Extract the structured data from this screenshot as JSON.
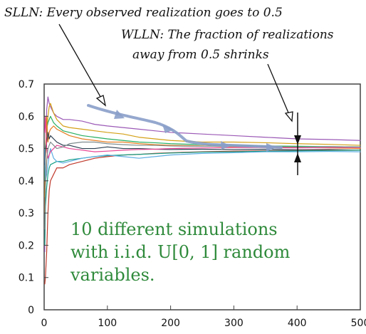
{
  "chart_data": {
    "type": "line",
    "xlabel": "",
    "ylabel": "",
    "xlim": [
      0,
      500
    ],
    "ylim": [
      0,
      0.7
    ],
    "xticks": [
      0,
      100,
      200,
      300,
      400,
      500
    ],
    "yticks": [
      0,
      0.1,
      0.2,
      0.3,
      0.4,
      0.5,
      0.6,
      0.7
    ],
    "grid": false,
    "legend": "none",
    "x": [
      1,
      2,
      4,
      6,
      8,
      10,
      15,
      20,
      30,
      40,
      60,
      80,
      100,
      125,
      150,
      175,
      200,
      250,
      300,
      350,
      400,
      450,
      500
    ],
    "series": [
      {
        "color": "#9b59b6",
        "values": [
          0.18,
          0.45,
          0.62,
          0.66,
          0.64,
          0.63,
          0.61,
          0.6,
          0.59,
          0.59,
          0.585,
          0.575,
          0.57,
          0.565,
          0.56,
          0.555,
          0.55,
          0.545,
          0.54,
          0.535,
          0.53,
          0.528,
          0.525
        ]
      },
      {
        "color": "#d4a017",
        "values": [
          0.35,
          0.48,
          0.55,
          0.6,
          0.63,
          0.64,
          0.61,
          0.59,
          0.57,
          0.565,
          0.56,
          0.555,
          0.55,
          0.545,
          0.535,
          0.53,
          0.525,
          0.52,
          0.52,
          0.518,
          0.515,
          0.513,
          0.51
        ]
      },
      {
        "color": "#27ae60",
        "values": [
          0.4,
          0.5,
          0.56,
          0.58,
          0.59,
          0.6,
          0.58,
          0.57,
          0.555,
          0.55,
          0.54,
          0.535,
          0.53,
          0.525,
          0.52,
          0.518,
          0.515,
          0.512,
          0.51,
          0.508,
          0.507,
          0.506,
          0.505
        ]
      },
      {
        "color": "#e67e22",
        "values": [
          0.3,
          0.46,
          0.6,
          0.52,
          0.55,
          0.56,
          0.57,
          0.56,
          0.55,
          0.54,
          0.53,
          0.525,
          0.52,
          0.52,
          0.515,
          0.512,
          0.51,
          0.508,
          0.505,
          0.505,
          0.503,
          0.502,
          0.5
        ]
      },
      {
        "color": "#2c3e50",
        "values": [
          0.45,
          0.5,
          0.52,
          0.55,
          0.53,
          0.54,
          0.53,
          0.52,
          0.51,
          0.51,
          0.5,
          0.5,
          0.505,
          0.5,
          0.5,
          0.498,
          0.497,
          0.498,
          0.497,
          0.498,
          0.496,
          0.497,
          0.495
        ]
      },
      {
        "color": "#c0392b",
        "values": [
          0.08,
          0.1,
          0.18,
          0.3,
          0.37,
          0.4,
          0.42,
          0.44,
          0.44,
          0.45,
          0.46,
          0.47,
          0.475,
          0.48,
          0.482,
          0.485,
          0.487,
          0.49,
          0.492,
          0.493,
          0.494,
          0.495,
          0.495
        ]
      },
      {
        "color": "#16a085",
        "values": [
          0.2,
          0.32,
          0.38,
          0.42,
          0.44,
          0.45,
          0.455,
          0.46,
          0.46,
          0.465,
          0.47,
          0.475,
          0.478,
          0.48,
          0.482,
          0.484,
          0.486,
          0.489,
          0.49,
          0.492,
          0.493,
          0.494,
          0.495
        ]
      },
      {
        "color": "#5dade2",
        "values": [
          0.5,
          0.4,
          0.42,
          0.45,
          0.48,
          0.5,
          0.47,
          0.46,
          0.455,
          0.46,
          0.47,
          0.475,
          0.48,
          0.475,
          0.47,
          0.475,
          0.48,
          0.485,
          0.487,
          0.49,
          0.49,
          0.491,
          0.49
        ]
      },
      {
        "color": "#e84393",
        "values": [
          0.55,
          0.6,
          0.5,
          0.47,
          0.48,
          0.49,
          0.5,
          0.51,
          0.505,
          0.5,
          0.495,
          0.49,
          0.492,
          0.495,
          0.497,
          0.498,
          0.5,
          0.502,
          0.503,
          0.503,
          0.502,
          0.503,
          0.503
        ]
      },
      {
        "color": "#7f8c8d",
        "values": [
          0.25,
          0.38,
          0.46,
          0.5,
          0.51,
          0.52,
          0.51,
          0.5,
          0.505,
          0.515,
          0.52,
          0.52,
          0.515,
          0.512,
          0.51,
          0.51,
          0.508,
          0.507,
          0.507,
          0.506,
          0.505,
          0.506,
          0.505
        ]
      }
    ]
  },
  "annotations": {
    "slln_text": "SLLN: Every observed realization goes to 0.5",
    "wlln_text_line1": "WLLN: The fraction of realizations",
    "wlln_text_line2": "away from 0.5 shrinks",
    "simulation_text_line1": "10 different simulations",
    "simulation_text_line2": "with i.i.d. U[0, 1] random",
    "simulation_text_line3": "variables.",
    "green_color": "#2f8a3b",
    "trajectory_arrow_color": "#8a9fc9"
  }
}
